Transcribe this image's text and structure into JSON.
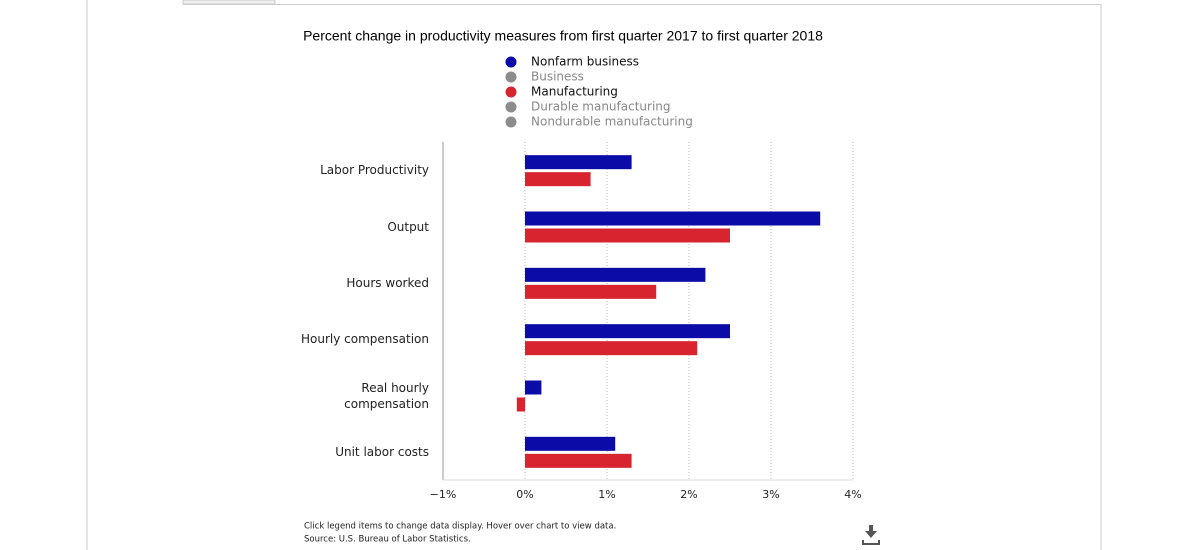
{
  "chart_data": {
    "type": "bar",
    "orientation": "horizontal",
    "title": "Percent change in productivity measures from first quarter 2017 to first quarter 2018",
    "categories": [
      "Labor Productivity",
      "Output",
      "Hours worked",
      "Hourly compensation",
      "Real hourly compensation",
      "Unit labor costs"
    ],
    "series": [
      {
        "name": "Nonfarm business",
        "color": "#0b0ba8",
        "visible": true,
        "values": [
          1.3,
          3.6,
          2.2,
          2.5,
          0.2,
          1.1
        ]
      },
      {
        "name": "Business",
        "color": "#8c8c8c",
        "visible": false
      },
      {
        "name": "Manufacturing",
        "color": "#d7242e",
        "visible": true,
        "values": [
          0.8,
          2.5,
          1.6,
          2.1,
          -0.1,
          1.3
        ]
      },
      {
        "name": "Durable manufacturing",
        "color": "#8c8c8c",
        "visible": false
      },
      {
        "name": "Nondurable manufacturing",
        "color": "#8c8c8c",
        "visible": false
      }
    ],
    "xlim": [
      -1,
      4
    ],
    "xticks": [
      {
        "value": -1,
        "label": "−1%"
      },
      {
        "value": 0,
        "label": "0%"
      },
      {
        "value": 1,
        "label": "1%"
      },
      {
        "value": 2,
        "label": "2%"
      },
      {
        "value": 3,
        "label": "3%"
      },
      {
        "value": 4,
        "label": "4%"
      }
    ],
    "grid": true,
    "notes": [
      "Click legend items to change data display. Hover over chart to view data.",
      "Source: U.S. Bureau of Labor Statistics."
    ]
  }
}
